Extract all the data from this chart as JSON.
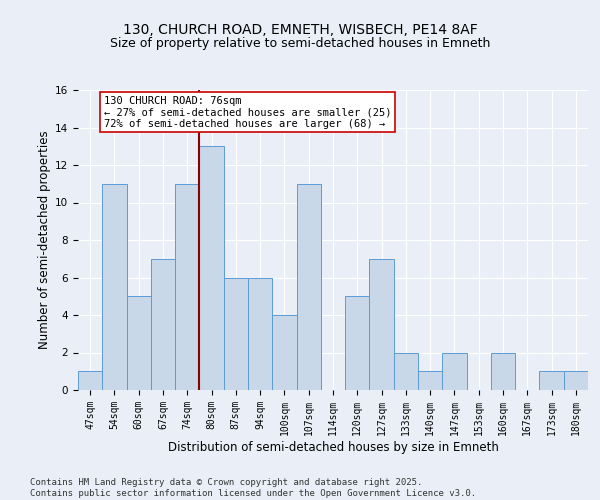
{
  "title_line1": "130, CHURCH ROAD, EMNETH, WISBECH, PE14 8AF",
  "title_line2": "Size of property relative to semi-detached houses in Emneth",
  "xlabel": "Distribution of semi-detached houses by size in Emneth",
  "ylabel": "Number of semi-detached properties",
  "categories": [
    "47sqm",
    "54sqm",
    "60sqm",
    "67sqm",
    "74sqm",
    "80sqm",
    "87sqm",
    "94sqm",
    "100sqm",
    "107sqm",
    "114sqm",
    "120sqm",
    "127sqm",
    "133sqm",
    "140sqm",
    "147sqm",
    "153sqm",
    "160sqm",
    "167sqm",
    "173sqm",
    "180sqm"
  ],
  "values": [
    1,
    11,
    5,
    7,
    11,
    13,
    6,
    6,
    4,
    11,
    0,
    5,
    7,
    2,
    1,
    2,
    0,
    2,
    0,
    1,
    1
  ],
  "bar_color": "#c8d8e8",
  "bar_edge_color": "#5b9bd5",
  "vline_color": "#8b0000",
  "vline_x": 4.5,
  "annotation_text": "130 CHURCH ROAD: 76sqm\n← 27% of semi-detached houses are smaller (25)\n72% of semi-detached houses are larger (68) →",
  "annotation_box_color": "#ffffff",
  "annotation_box_edge_color": "#cc0000",
  "ylim": [
    0,
    16
  ],
  "yticks": [
    0,
    2,
    4,
    6,
    8,
    10,
    12,
    14,
    16
  ],
  "footer_text": "Contains HM Land Registry data © Crown copyright and database right 2025.\nContains public sector information licensed under the Open Government Licence v3.0.",
  "bg_color": "#eaeff7",
  "plot_bg_color": "#eaeff7",
  "grid_color": "#ffffff",
  "title_fontsize": 10,
  "subtitle_fontsize": 9,
  "axis_label_fontsize": 8.5,
  "tick_fontsize": 7,
  "footer_fontsize": 6.5,
  "annot_fontsize": 7.5
}
